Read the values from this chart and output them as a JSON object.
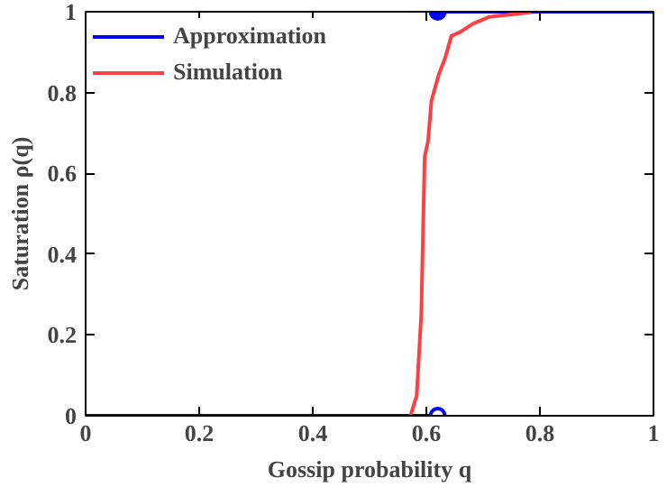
{
  "chart_data": {
    "type": "line",
    "xlabel": "Gossip probability q",
    "ylabel": "Saturation ρ(q)",
    "xlim": [
      0,
      1
    ],
    "ylim": [
      0,
      1
    ],
    "xticks": [
      0,
      0.2,
      0.4,
      0.6,
      0.8,
      1
    ],
    "yticks": [
      0,
      0.2,
      0.4,
      0.6,
      0.8,
      1
    ],
    "grid": false,
    "legend": "top left",
    "marker": "none",
    "line_style": "solid",
    "series": [
      {
        "name": "Approximation",
        "color": "#0000ff",
        "x": [
          0,
          0.62
        ],
        "values": [
          0,
          0
        ]
      },
      {
        "color": "#0000ff",
        "x": [
          0.62,
          1
        ],
        "values": [
          1,
          1
        ]
      },
      {
        "name": "Simulation",
        "color": "#ff4040",
        "x": [
          0.572,
          0.583,
          0.591,
          0.597,
          0.603,
          0.609,
          0.622,
          0.633,
          0.644,
          0.66,
          0.682,
          0.71,
          0.786
        ],
        "values": [
          0,
          0.05,
          0.25,
          0.64,
          0.68,
          0.78,
          0.845,
          0.885,
          0.94,
          0.95,
          0.97,
          0.987,
          0.999
        ]
      },
      {
        "type": "scatter",
        "marker": "circle",
        "color": "#0000ff",
        "colors": [
          "#0000ff",
          "#ffffff"
        ],
        "x": [
          0.62,
          0.62
        ],
        "values": [
          1,
          0
        ]
      }
    ]
  }
}
